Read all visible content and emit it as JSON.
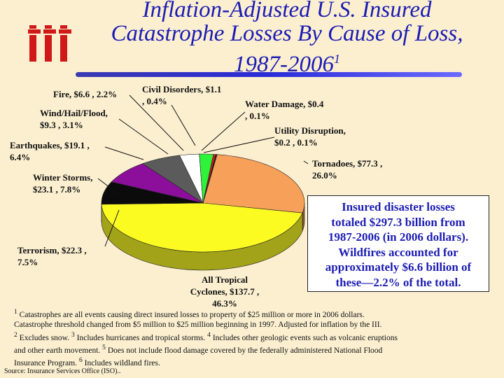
{
  "header": {
    "title_line_1": "Inflation-Adjusted U.S. Insured",
    "title_line_2": "Catastrophe Losses By Cause of Loss,",
    "title_line_3_main": "1987-2006",
    "title_line_3_sup": "1",
    "logo_text": "iii"
  },
  "chart_data": {
    "type": "pie",
    "title": "Inflation-Adjusted U.S. Insured Catastrophe Losses By Cause of Loss, 1987-2006",
    "units": "$ billion",
    "total": 297.3,
    "slices": [
      {
        "name": "Tornadoes",
        "value": 77.3,
        "percent": 26.0,
        "color": "#f6a05a",
        "label_lines": [
          "Tornadoes, $77.3 ,",
          "26.0%"
        ]
      },
      {
        "name": "All Tropical Cyclones",
        "value": 137.7,
        "percent": 46.3,
        "color": "#fbfb22",
        "label_lines": [
          "All Tropical",
          "Cyclones, $137.7 ,",
          "46.3%"
        ]
      },
      {
        "name": "Terrorism",
        "value": 22.3,
        "percent": 7.5,
        "color": "#0b0b0b",
        "label_lines": [
          "Terrorism, $22.3 ,",
          "7.5%"
        ]
      },
      {
        "name": "Winter Storms",
        "value": 23.1,
        "percent": 7.8,
        "color": "#8c0f9c",
        "label_lines": [
          "Winter Storms,",
          "$23.1 , 7.8%"
        ]
      },
      {
        "name": "Earthquakes",
        "value": 19.1,
        "percent": 6.4,
        "color": "#5b5b5b",
        "label_lines": [
          "Earthquakes, $19.1 ,",
          "6.4%"
        ]
      },
      {
        "name": "Wind/Hail/Flood",
        "value": 9.3,
        "percent": 3.1,
        "color": "#ffffff",
        "label_lines": [
          "Wind/Hail/Flood,",
          "$9.3 , 3.1%"
        ]
      },
      {
        "name": "Fire",
        "value": 6.6,
        "percent": 2.2,
        "color": "#2ff23a",
        "label_lines": [
          "Fire, $6.6 , 2.2%"
        ]
      },
      {
        "name": "Civil Disorders",
        "value": 1.1,
        "percent": 0.4,
        "color": "#e51212",
        "label_lines": [
          "Civil Disorders, $1.1",
          ", 0.4%"
        ]
      },
      {
        "name": "Water Damage",
        "value": 0.4,
        "percent": 0.1,
        "color": "#1a1a1a",
        "label_lines": [
          "Water Damage, $0.4",
          ", 0.1%"
        ]
      },
      {
        "name": "Utility Disruption",
        "value": 0.2,
        "percent": 0.1,
        "color": "#e8e8e8",
        "label_lines": [
          "Utility Disruption,",
          "$0.2 , 0.1%"
        ]
      }
    ]
  },
  "callout": {
    "lines": [
      "Insured disaster losses",
      "totaled $297.3 billion from",
      "1987-2006 (in 2006 dollars).",
      "Wildfires accounted for",
      "approximately $6.6 billion of",
      "these—2.2% of the total."
    ]
  },
  "footnotes": [
    {
      "sup": "1",
      "text": " Catastrophes are all events causing direct insured losses to property of $25 million or more in 2006 dollars."
    },
    {
      "sup": "",
      "text": "Catastrophe threshold changed from $5 million to $25 million beginning in 1997. Adjusted for inflation by the III."
    },
    {
      "sup": "2",
      "text": " Excludes snow. ",
      "sup2": "3",
      "text2": " Includes hurricanes and tropical storms. ",
      "sup3": "4",
      "text3": " Includes other geologic events such as volcanic eruptions"
    },
    {
      "sup": "",
      "text": "and other earth movement. ",
      "sup2": "5",
      "text2": " Does not include flood damage covered by the federally administered National Flood"
    },
    {
      "sup": "",
      "text": "Insurance Program. ",
      "sup2": "6",
      "text2": " Includes wildland fires."
    }
  ],
  "source": "Source: Insurance Services Office (ISO).."
}
